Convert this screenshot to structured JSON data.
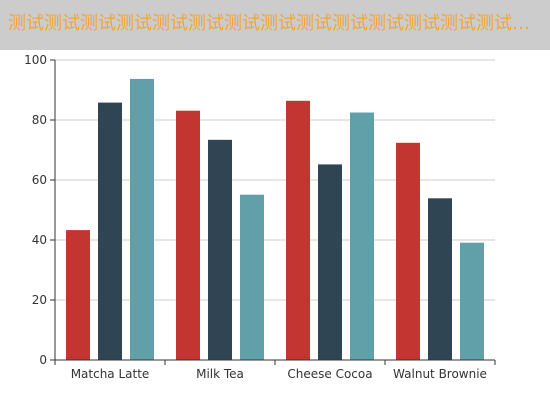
{
  "title": "测试测试测试测试测试测试测试测试测试测试测试测试测试测试测试测...",
  "colors": {
    "title_bar_bg": "#cccccc",
    "title_text": "#f3a43b",
    "series": [
      "#c23531",
      "#2f4554",
      "#61a0a8"
    ],
    "grid": "#cccccc",
    "axis": "#333333"
  },
  "chart_data": {
    "type": "bar",
    "categories": [
      "Matcha Latte",
      "Milk Tea",
      "Cheese Cocoa",
      "Walnut Brownie"
    ],
    "series": [
      {
        "values": [
          43.3,
          83.1,
          86.4,
          72.4
        ]
      },
      {
        "values": [
          85.8,
          73.4,
          65.2,
          53.9
        ]
      },
      {
        "values": [
          93.7,
          55.1,
          82.5,
          39.1
        ]
      }
    ],
    "yticks": [
      0,
      20,
      40,
      60,
      80,
      100
    ],
    "ylim": [
      0,
      100
    ],
    "grid": true,
    "legend": "none"
  }
}
